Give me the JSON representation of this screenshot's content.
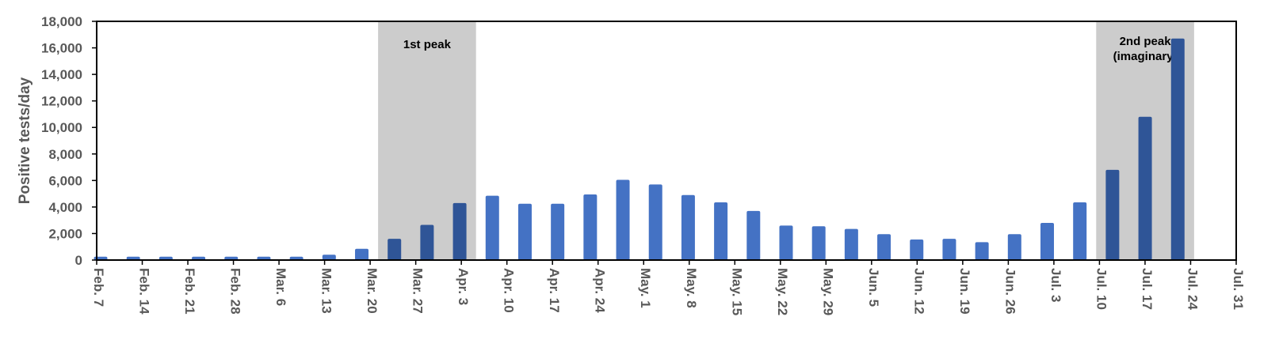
{
  "chart_data": {
    "type": "bar",
    "title": "",
    "xlabel": "",
    "ylabel": "Positive tests/day",
    "ylim": [
      0,
      18000
    ],
    "y_ticks": [
      "0",
      "2,000",
      "4,000",
      "6,000",
      "8,000",
      "10,000",
      "12,000",
      "14,000",
      "16,000",
      "18,000"
    ],
    "x_ticks": [
      "Feb. 7",
      "Feb. 14",
      "Feb. 21",
      "Feb. 28",
      "Mar. 6",
      "Mar. 13",
      "Mar. 20",
      "Mar. 27",
      "Apr. 3",
      "Apr. 10",
      "Apr. 17",
      "Apr. 24",
      "May. 1",
      "May. 8",
      "May. 15",
      "May. 22",
      "May. 29",
      "Jun. 5",
      "Jun. 12",
      "Jun. 19",
      "Jun. 26",
      "Jul. 3",
      "Jul. 10",
      "Jul. 17",
      "Jul. 24",
      "Jul. 31"
    ],
    "values": [
      250,
      250,
      250,
      250,
      250,
      250,
      250,
      400,
      850,
      1600,
      2650,
      4300,
      4850,
      4250,
      4250,
      4950,
      6050,
      5700,
      4900,
      4350,
      3700,
      2600,
      2550,
      2350,
      1950,
      1550,
      1600,
      1350,
      1950,
      2800,
      4350,
      6800,
      10800,
      16700
    ],
    "highlight_bands": [
      {
        "label_lines": [
          "1st peak"
        ],
        "from_bar": 9,
        "to_bar": 12
      },
      {
        "label_lines": [
          "2nd peak",
          "(imaginary)"
        ],
        "from_bar": 31,
        "to_bar": 34
      }
    ],
    "colors": {
      "bar": "#4472C4",
      "bar_highlight": "#2F5597",
      "band": "#CCCCCC",
      "axis": "#000000",
      "text": "#595959"
    },
    "grid": false,
    "legend": "none"
  }
}
